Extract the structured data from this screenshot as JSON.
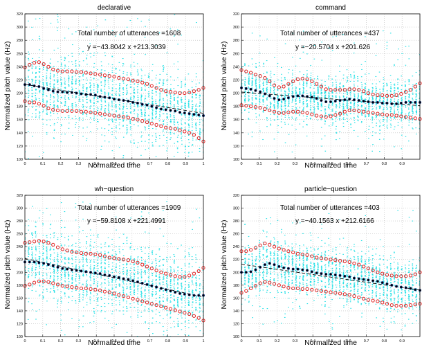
{
  "chart_data": [
    {
      "type": "scatter",
      "title": "declarative",
      "xlabel": "Normalized time",
      "ylabel": "Normalized pitch value (Hz)",
      "xlim": [
        0,
        1
      ],
      "ylim": [
        100,
        320
      ],
      "xticks": [
        "0",
        "0.1",
        "0.2",
        "0.3",
        "0.4",
        "0.5",
        "0.6",
        "0.7",
        "0.8",
        "0.9",
        "1"
      ],
      "yticks": [
        "100",
        "120",
        "140",
        "160",
        "180",
        "200",
        "220",
        "240",
        "260",
        "280",
        "300",
        "320"
      ],
      "grid": true,
      "annotations": [
        "Total number of utterances =1608",
        "y =−43.8042 x +213.3039"
      ],
      "fit": {
        "slope": -43.8042,
        "intercept": 213.3039
      },
      "cloud": {
        "spread": 38,
        "top": 320,
        "bottom": 100
      },
      "mean": [
        213,
        213,
        211,
        210,
        207,
        205,
        203,
        202,
        202,
        201,
        201,
        200,
        199,
        198,
        198,
        197,
        195,
        194,
        193,
        191,
        190,
        189,
        188,
        186,
        185,
        183,
        182,
        180,
        178,
        176,
        175,
        174,
        173,
        171,
        170,
        169,
        168,
        167,
        166
      ],
      "upper": [
        239,
        243,
        246,
        247,
        244,
        240,
        236,
        234,
        233,
        233,
        233,
        232,
        232,
        231,
        230,
        229,
        228,
        227,
        226,
        225,
        223,
        222,
        221,
        219,
        218,
        216,
        214,
        211,
        208,
        205,
        203,
        202,
        201,
        200,
        200,
        201,
        203,
        205,
        208
      ],
      "lower": [
        188,
        186,
        186,
        184,
        181,
        177,
        175,
        174,
        173,
        173,
        173,
        173,
        172,
        172,
        171,
        170,
        169,
        168,
        167,
        166,
        165,
        164,
        163,
        161,
        160,
        158,
        156,
        154,
        152,
        150,
        148,
        147,
        146,
        144,
        142,
        140,
        137,
        132,
        127
      ]
    },
    {
      "type": "scatter",
      "title": "command",
      "xlabel": "Normalized time",
      "ylabel": "Normalized pitch value (Hz)",
      "xlim": [
        0,
        1
      ],
      "ylim": [
        100,
        320
      ],
      "xticks": [
        "0",
        "0.1",
        "0.2",
        "0.3",
        "0.4",
        "0.5",
        "0.6",
        "0.7",
        "0.8",
        "0.9"
      ],
      "yticks": [
        "100",
        "120",
        "140",
        "160",
        "180",
        "200",
        "220",
        "240",
        "260",
        "280",
        "300",
        "320"
      ],
      "grid": true,
      "annotations": [
        "Total number of utterances =437",
        "y =−20.5704 x +201.626"
      ],
      "fit": {
        "slope": -20.5704,
        "intercept": 201.626
      },
      "cloud": {
        "spread": 26,
        "top": 300,
        "bottom": 110
      },
      "mean": [
        208,
        207,
        206,
        204,
        202,
        199,
        196,
        192,
        190,
        191,
        193,
        195,
        196,
        196,
        195,
        194,
        192,
        189,
        187,
        187,
        188,
        189,
        190,
        191,
        190,
        189,
        188,
        187,
        186,
        186,
        185,
        185,
        184,
        184,
        185,
        186,
        186,
        186,
        186
      ],
      "upper": [
        235,
        233,
        231,
        228,
        226,
        223,
        218,
        212,
        209,
        210,
        214,
        218,
        221,
        222,
        221,
        218,
        214,
        210,
        206,
        205,
        205,
        205,
        205,
        206,
        206,
        205,
        203,
        200,
        198,
        197,
        197,
        196,
        196,
        197,
        199,
        202,
        205,
        210,
        215
      ],
      "lower": [
        182,
        181,
        180,
        179,
        178,
        176,
        174,
        172,
        170,
        170,
        171,
        172,
        172,
        171,
        170,
        168,
        166,
        165,
        164,
        165,
        167,
        169,
        172,
        174,
        174,
        173,
        172,
        171,
        170,
        169,
        168,
        167,
        167,
        166,
        165,
        164,
        163,
        162,
        161
      ]
    },
    {
      "type": "scatter",
      "title": "wh−question",
      "xlabel": "Normalized time",
      "ylabel": "Normalized pitch value (Hz)",
      "xlim": [
        0,
        1
      ],
      "ylim": [
        100,
        320
      ],
      "xticks": [
        "0",
        "0.1",
        "0.2",
        "0.3",
        "0.4",
        "0.5",
        "0.6",
        "0.7",
        "0.8",
        "0.9",
        "1"
      ],
      "yticks": [
        "100",
        "120",
        "140",
        "160",
        "180",
        "200",
        "220",
        "240",
        "260",
        "280",
        "300",
        "320"
      ],
      "grid": true,
      "annotations": [
        "Total number of utterances =1909",
        "y =−59.8108 x +221.4991"
      ],
      "fit": {
        "slope": -59.8108,
        "intercept": 221.4991
      },
      "cloud": {
        "spread": 40,
        "top": 310,
        "bottom": 100
      },
      "mean": [
        216,
        216,
        216,
        215,
        214,
        212,
        210,
        208,
        206,
        205,
        204,
        203,
        202,
        201,
        200,
        199,
        198,
        196,
        195,
        193,
        192,
        190,
        189,
        187,
        185,
        183,
        181,
        179,
        177,
        175,
        173,
        171,
        169,
        167,
        166,
        165,
        164,
        164,
        164
      ],
      "upper": [
        246,
        247,
        248,
        249,
        248,
        246,
        243,
        239,
        236,
        234,
        232,
        231,
        230,
        229,
        229,
        228,
        227,
        225,
        223,
        222,
        221,
        220,
        219,
        217,
        215,
        212,
        209,
        206,
        203,
        200,
        198,
        196,
        194,
        193,
        193,
        195,
        198,
        202,
        207
      ],
      "lower": [
        179,
        181,
        184,
        186,
        186,
        185,
        183,
        181,
        179,
        178,
        177,
        176,
        175,
        175,
        174,
        173,
        172,
        170,
        169,
        167,
        165,
        163,
        161,
        159,
        157,
        155,
        153,
        151,
        149,
        147,
        145,
        143,
        141,
        139,
        137,
        135,
        132,
        129,
        125
      ]
    },
    {
      "type": "scatter",
      "title": "particle−question",
      "xlabel": "Normalized time",
      "ylabel": "Normalized pitch value (Hz)",
      "xlim": [
        0,
        1
      ],
      "ylim": [
        100,
        320
      ],
      "xticks": [
        "0",
        "0.1",
        "0.2",
        "0.3",
        "0.4",
        "0.5",
        "0.6",
        "0.7",
        "0.8",
        "0.9"
      ],
      "yticks": [
        "100",
        "120",
        "140",
        "160",
        "180",
        "200",
        "220",
        "240",
        "260",
        "280",
        "300",
        "320"
      ],
      "grid": true,
      "annotations": [
        "Total number of utterances =403",
        "y =−40.1563 x +212.6166"
      ],
      "fit": {
        "slope": -40.1563,
        "intercept": 212.6166
      },
      "cloud": {
        "spread": 30,
        "top": 300,
        "bottom": 110
      },
      "mean": [
        200,
        200,
        201,
        204,
        208,
        212,
        214,
        212,
        209,
        207,
        206,
        205,
        205,
        204,
        203,
        201,
        199,
        198,
        197,
        197,
        196,
        195,
        194,
        193,
        191,
        190,
        189,
        188,
        187,
        186,
        184,
        182,
        180,
        178,
        177,
        176,
        175,
        173,
        172
      ],
      "upper": [
        233,
        233,
        235,
        238,
        242,
        245,
        243,
        240,
        237,
        235,
        233,
        231,
        229,
        228,
        227,
        225,
        223,
        222,
        221,
        220,
        219,
        218,
        217,
        216,
        214,
        212,
        209,
        206,
        203,
        200,
        198,
        196,
        195,
        194,
        194,
        194,
        195,
        197,
        200
      ],
      "lower": [
        168,
        171,
        175,
        179,
        183,
        185,
        184,
        182,
        180,
        178,
        176,
        175,
        175,
        174,
        174,
        173,
        172,
        171,
        170,
        169,
        168,
        167,
        166,
        165,
        163,
        161,
        159,
        157,
        156,
        155,
        153,
        151,
        149,
        148,
        148,
        148,
        149,
        150,
        151
      ]
    }
  ]
}
